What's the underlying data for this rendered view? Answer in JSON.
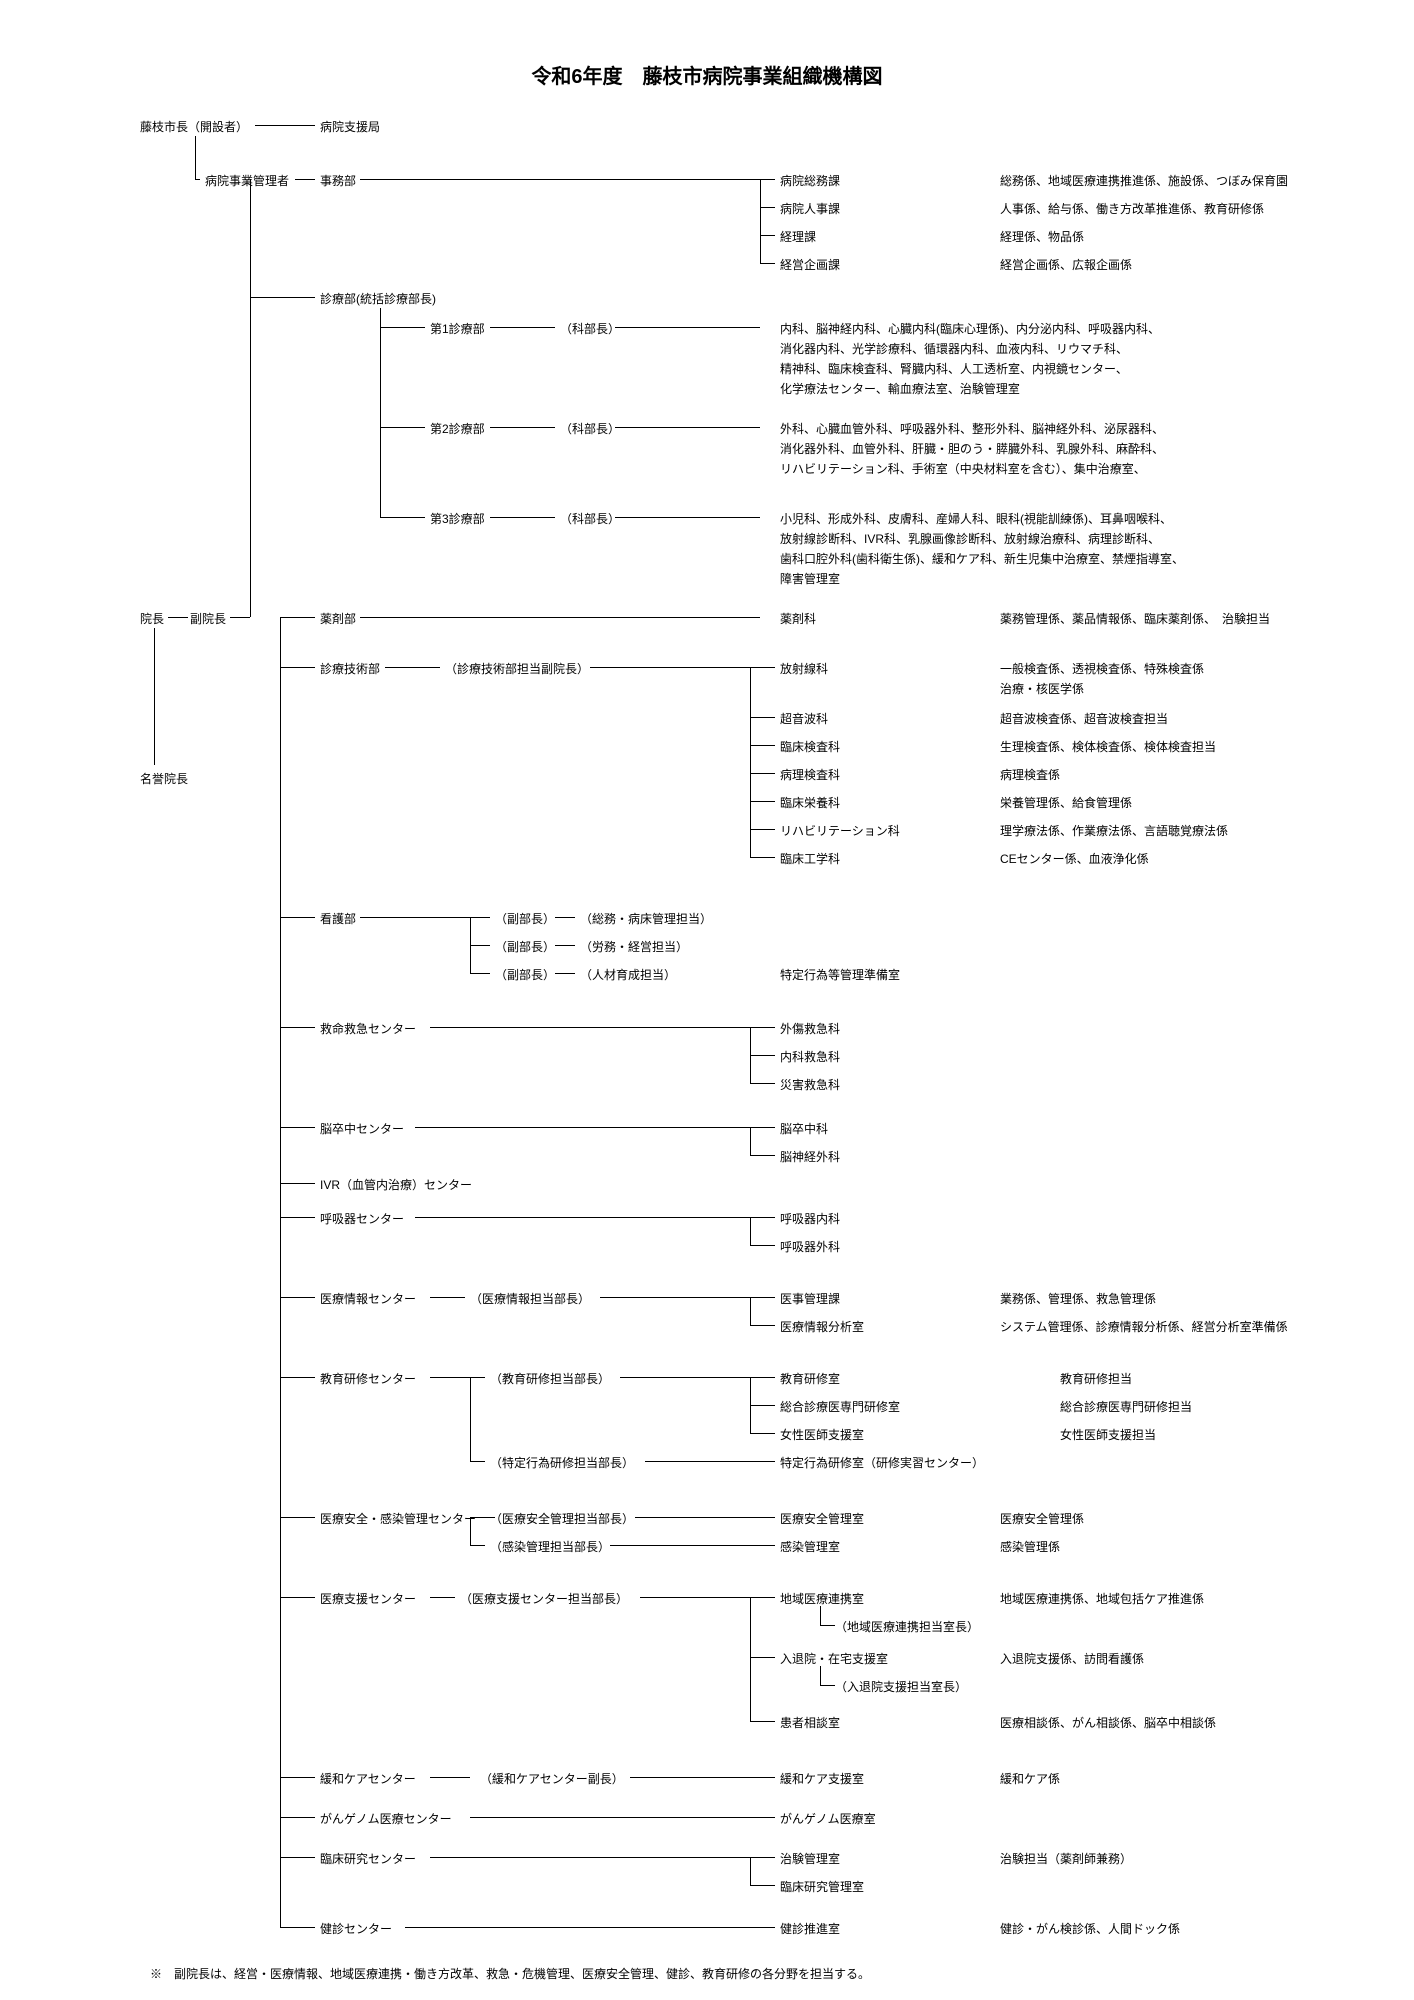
{
  "title": "令和6年度　藤枝市病院事業組織機構図",
  "title_fontsize": 20,
  "label_fontsize": 12,
  "text_color": "#000000",
  "bg_color": "#ffffff",
  "line_color": "#000000",
  "line_width": 1,
  "cols": {
    "c1": 140,
    "c2": 205,
    "c2b": 280,
    "c3": 320,
    "c4": 430,
    "c5": 560,
    "c6": 780,
    "c6b": 820,
    "c7": 1000
  },
  "rows": {
    "mayor": 118,
    "mgr": 172,
    "jim1": 172,
    "jim2": 200,
    "jim3": 228,
    "jim4": 256,
    "shinryo": 290,
    "dept1": 320,
    "dept1b": 340,
    "dept1c": 360,
    "dept1d": 380,
    "dept2": 420,
    "dept2b": 440,
    "dept2c": 460,
    "dept3": 510,
    "dept3b": 530,
    "dept3c": 550,
    "dept3d": 570,
    "incho": 610,
    "yakuzai": 610,
    "gijutsu": 660,
    "g1": 660,
    "g1b": 680,
    "g2": 710,
    "g3": 738,
    "g4": 766,
    "meiyo": 770,
    "g5": 794,
    "g6": 822,
    "g7": 850,
    "kango": 910,
    "kango2": 938,
    "kango3": 966,
    "kyumei": 1020,
    "kyu2": 1048,
    "kyu3": 1076,
    "nousot": 1120,
    "nou2": 1148,
    "ivr": 1176,
    "kokyu": 1210,
    "kokyu2": 1238,
    "joho": 1290,
    "joho2": 1318,
    "kyoiku": 1370,
    "kyo2": 1398,
    "kyo3": 1426,
    "kyo4": 1454,
    "anzen": 1510,
    "anzen2": 1538,
    "shien": 1590,
    "shien1b": 1618,
    "shien2": 1650,
    "shien2b": 1678,
    "shien3": 1714,
    "kanwa": 1770,
    "genome": 1810,
    "rinken": 1850,
    "rinken2": 1878,
    "kenshin": 1920
  },
  "labels": {
    "mayor": "藤枝市長（開設者）",
    "support": "病院支援局",
    "mgr": "病院事業管理者",
    "jimubu": "事務部",
    "jim1": "病院総務課",
    "jim1d": "総務係、地域医療連携推進係、施設係、つぼみ保育園",
    "jim2": "病院人事課",
    "jim2d": "人事係、給与係、働き方改革推進係、教育研修係",
    "jim3": "経理課",
    "jim3d": "経理係、物品係",
    "jim4": "経営企画課",
    "jim4d": "経営企画係、広報企画係",
    "shinryo": "診療部(統括診療部長)",
    "dept1": "第1診療部",
    "kacho": "（科部長）",
    "d1l1": "内科、脳神経内科、心臓内科(臨床心理係)、内分泌内科、呼吸器内科、",
    "d1l2": "消化器内科、光学診療科、循環器内科、血液内科、リウマチ科、",
    "d1l3": "精神科、臨床検査科、腎臓内科、人工透析室、内視鏡センター、",
    "d1l4": "化学療法センター、輸血療法室、治験管理室",
    "dept2": "第2診療部",
    "d2l1": "外科、心臓血管外科、呼吸器外科、整形外科、脳神経外科、泌尿器科、",
    "d2l2": "消化器外科、血管外科、肝臓・胆のう・膵臓外科、乳腺外科、麻酔科、",
    "d2l3": "リハビリテーション科、手術室（中央材料室を含む）、集中治療室、",
    "dept3": "第3診療部",
    "d3l1": "小児科、形成外科、皮膚科、産婦人科、眼科(視能訓練係)、耳鼻咽喉科、",
    "d3l2": "放射線診断科、IVR科、乳腺画像診断科、放射線治療科、病理診断科、",
    "d3l3": "歯科口腔外科(歯科衛生係)、緩和ケア科、新生児集中治療室、禁煙指導室、",
    "d3l4": "障害管理室",
    "incho": "院長",
    "fukuincho": "副院長",
    "meiyo": "名誉院長",
    "yakuzaibu": "薬剤部",
    "yakuzaika": "薬剤科",
    "yakuzaid": "薬務管理係、薬品情報係、臨床薬剤係、　治験担当",
    "gijutsu": "診療技術部",
    "gihead": "（診療技術部担当副院長）",
    "g1": "放射線科",
    "g1d": "一般検査係、透視検査係、特殊検査係",
    "g1b": "",
    "g1bd": "治療・核医学係",
    "g2": "超音波科",
    "g2d": "超音波検査係、超音波検査担当",
    "g3": "臨床検査科",
    "g3d": "生理検査係、検体検査係、検体検査担当",
    "g4": "病理検査科",
    "g4d": "病理検査係",
    "g5": "臨床栄養科",
    "g5d": "栄養管理係、給食管理係",
    "g6": "リハビリテーション科",
    "g6d": "理学療法係、作業療法係、言語聴覚療法係",
    "g7": "臨床工学科",
    "g7d": "CEセンター係、血液浄化係",
    "kangobu": "看護部",
    "kango_s1": "（副部長）",
    "kango_s1b": "（総務・病床管理担当）",
    "kango_s2": "（副部長）",
    "kango_s2b": "（労務・経営担当）",
    "kango_s3": "（副部長）",
    "kango_s3b": "（人材育成担当）",
    "kango_s3c": "特定行為等管理準備室",
    "kyumei": "救命救急センター",
    "kyu1": "外傷救急科",
    "kyu2": "内科救急科",
    "kyu3": "災害救急科",
    "nousot": "脳卒中センター",
    "nou1": "脳卒中科",
    "nou2": "脳神経外科",
    "ivr": "IVR（血管内治療）センター",
    "kokyu": "呼吸器センター",
    "kok1": "呼吸器内科",
    "kok2": "呼吸器外科",
    "joho": "医療情報センター",
    "jhead": "（医療情報担当部長）",
    "jo1": "医事管理課",
    "jo1d": "業務係、管理係、救急管理係",
    "jo2": "医療情報分析室",
    "jo2d": "システム管理係、診療情報分析係、経営分析室準備係",
    "kyoiku": "教育研修センター",
    "khead": "（教育研修担当部長）",
    "ky1": "教育研修室",
    "ky1d": "教育研修担当",
    "ky2": "総合診療医専門研修室",
    "ky2d": "総合診療医専門研修担当",
    "ky3": "女性医師支援室",
    "ky3d": "女性医師支援担当",
    "khead2": "（特定行為研修担当部長）",
    "ky4": "特定行為研修室（研修実習センター）",
    "anzen": "医療安全・感染管理センター",
    "ahead1": "（医療安全管理担当部長）",
    "an1": "医療安全管理室",
    "an1d": "医療安全管理係",
    "ahead2": "（感染管理担当部長）",
    "an2": "感染管理室",
    "an2d": "感染管理係",
    "shien": "医療支援センター",
    "shead": "（医療支援センター担当部長）",
    "sh1": "地域医療連携室",
    "sh1d": "地域医療連携係、地域包括ケア推進係",
    "sh1b": "（地域医療連携担当室長）",
    "sh2": "入退院・在宅支援室",
    "sh2d": "入退院支援係、訪問看護係",
    "sh2b": "（入退院支援担当室長）",
    "sh3": "患者相談室",
    "sh3d": "医療相談係、がん相談係、脳卒中相談係",
    "kanwa": "緩和ケアセンター",
    "kwhead": "（緩和ケアセンター副長）",
    "kw1": "緩和ケア支援室",
    "kw1d": "緩和ケア係",
    "genome": "がんゲノム医療センター",
    "ge1": "がんゲノム医療室",
    "rinken": "臨床研究センター",
    "rk1": "治験管理室",
    "rk1d": "治験担当（薬剤師兼務）",
    "rk2": "臨床研究管理室",
    "kenshin": "健診センター",
    "ks1": "健診推進室",
    "ks1d": "健診・がん検診係、人間ドック係"
  },
  "footnote": "※　副院長は、経営・医療情報、地域医療連携・働き方改革、救急・危機管理、医療安全管理、健診、教育研修の各分野を担当する。"
}
